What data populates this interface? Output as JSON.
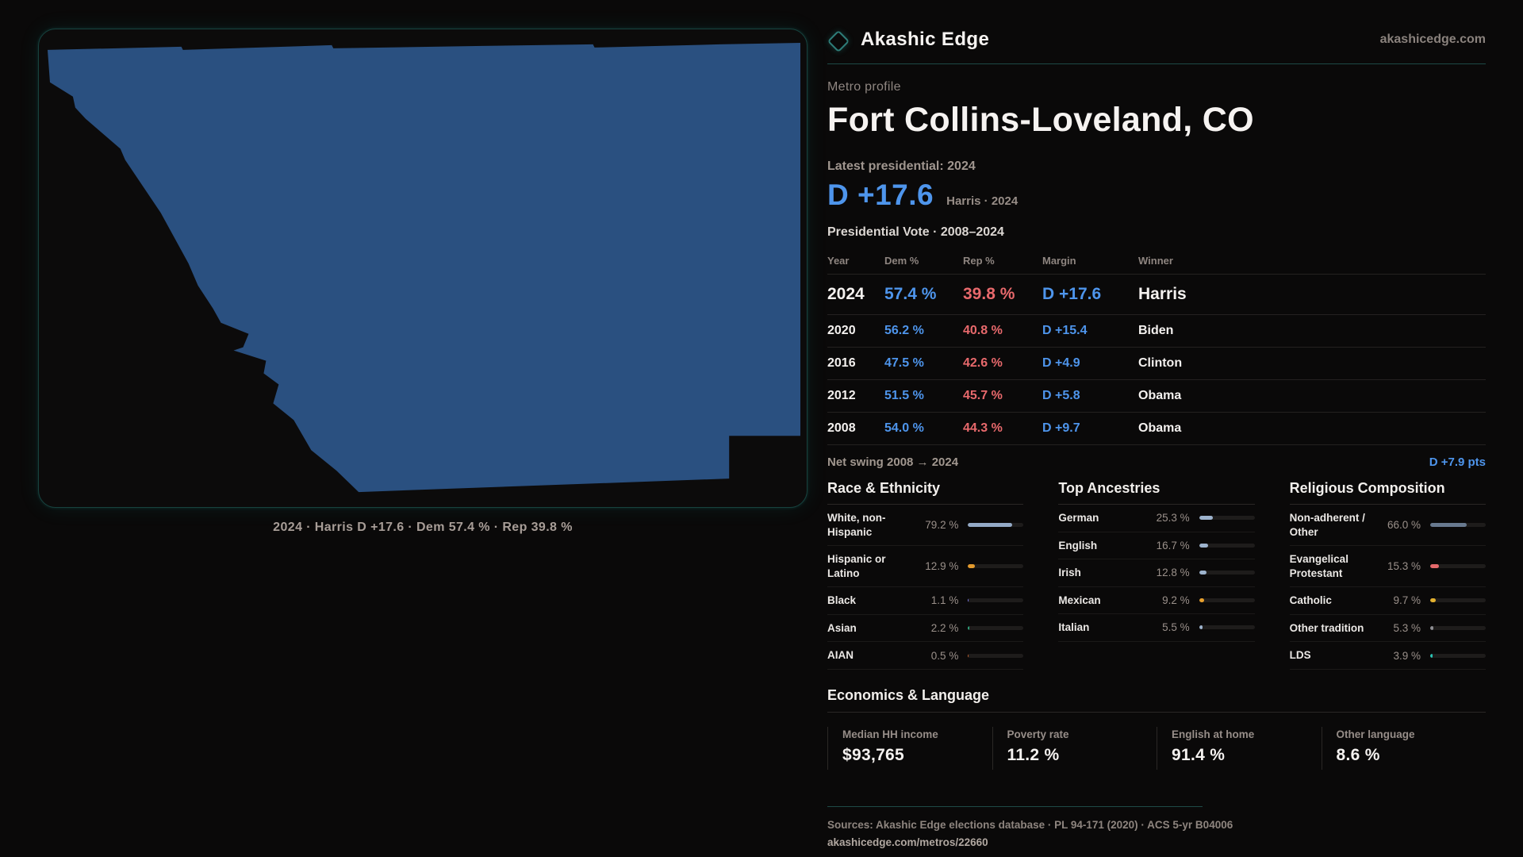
{
  "brand": {
    "name": "Akashic Edge",
    "domain": "akashicedge.com",
    "accent_teal": "#2e7c78"
  },
  "header": {
    "eyebrow": "Metro profile",
    "title": "Fort Collins-Loveland, CO",
    "latest_label": "Latest presidential: 2024",
    "headline_margin": "D +17.6",
    "headline_note": "Harris · 2024"
  },
  "map": {
    "fill": "#2a5080",
    "caption": "2024 · Harris D +17.6 · Dem 57.4 % · Rep 39.8 %"
  },
  "vote_table": {
    "title": "Presidential Vote · 2008–2024",
    "columns": {
      "year": "Year",
      "dem": "Dem %",
      "rep": "Rep %",
      "margin": "Margin",
      "winner": "Winner"
    },
    "rows": [
      {
        "year": "2024",
        "dem": "57.4 %",
        "rep": "39.8 %",
        "margin": "D +17.6",
        "winner": "Harris"
      },
      {
        "year": "2020",
        "dem": "56.2 %",
        "rep": "40.8 %",
        "margin": "D +15.4",
        "winner": "Biden"
      },
      {
        "year": "2016",
        "dem": "47.5 %",
        "rep": "42.6 %",
        "margin": "D +4.9",
        "winner": "Clinton"
      },
      {
        "year": "2012",
        "dem": "51.5 %",
        "rep": "45.7 %",
        "margin": "D +5.8",
        "winner": "Obama"
      },
      {
        "year": "2008",
        "dem": "54.0 %",
        "rep": "44.3 %",
        "margin": "D +9.7",
        "winner": "Obama"
      }
    ],
    "net_swing_label": "Net swing 2008 → 2024",
    "net_swing_value": "D +7.9 pts",
    "dem_color": "#4e95ec",
    "rep_color": "#e8696c"
  },
  "race": {
    "title": "Race & Ethnicity",
    "rows": [
      {
        "label": "White, non-Hispanic",
        "display": "79.2 %",
        "value": 79.2,
        "color": "#94aac6"
      },
      {
        "label": "Hispanic or Latino",
        "display": "12.9 %",
        "value": 12.9,
        "color": "#e39a2d"
      },
      {
        "label": "Black",
        "display": "1.1 %",
        "value": 1.1,
        "color": "#7f7ced"
      },
      {
        "label": "Asian",
        "display": "2.2 %",
        "value": 2.2,
        "color": "#2fa57d"
      },
      {
        "label": "AIAN",
        "display": "0.5 %",
        "value": 0.5,
        "color": "#bf5e2c"
      }
    ]
  },
  "ancestries": {
    "title": "Top Ancestries",
    "rows": [
      {
        "label": "German",
        "display": "25.3 %",
        "value": 25.3,
        "color": "#9db3cd"
      },
      {
        "label": "English",
        "display": "16.7 %",
        "value": 16.7,
        "color": "#9db3cd"
      },
      {
        "label": "Irish",
        "display": "12.8 %",
        "value": 12.8,
        "color": "#9db3cd"
      },
      {
        "label": "Mexican",
        "display": "9.2 %",
        "value": 9.2,
        "color": "#e8a02e"
      },
      {
        "label": "Italian",
        "display": "5.5 %",
        "value": 5.5,
        "color": "#9db3cd"
      }
    ]
  },
  "religion": {
    "title": "Religious Composition",
    "rows": [
      {
        "label": "Non-adherent / Other",
        "display": "66.0 %",
        "value": 66.0,
        "color": "#68798f"
      },
      {
        "label": "Evangelical Protestant",
        "display": "15.3 %",
        "value": 15.3,
        "color": "#e4696b"
      },
      {
        "label": "Catholic",
        "display": "9.7 %",
        "value": 9.7,
        "color": "#e2b02f"
      },
      {
        "label": "Other tradition",
        "display": "5.3 %",
        "value": 5.3,
        "color": "#8e8e93"
      },
      {
        "label": "LDS",
        "display": "3.9 %",
        "value": 3.9,
        "color": "#2bc3b4"
      }
    ]
  },
  "economics": {
    "title": "Economics & Language",
    "stats": [
      {
        "label": "Median HH income",
        "value": "$93,765"
      },
      {
        "label": "Poverty rate",
        "value": "11.2 %"
      },
      {
        "label": "English at home",
        "value": "91.4 %"
      },
      {
        "label": "Other language",
        "value": "8.6 %"
      }
    ]
  },
  "footer": {
    "sources": "Sources: Akashic Edge elections database · PL 94-171 (2020) · ACS 5-yr B04006",
    "permalink": "akashicedge.com/metros/22660"
  }
}
